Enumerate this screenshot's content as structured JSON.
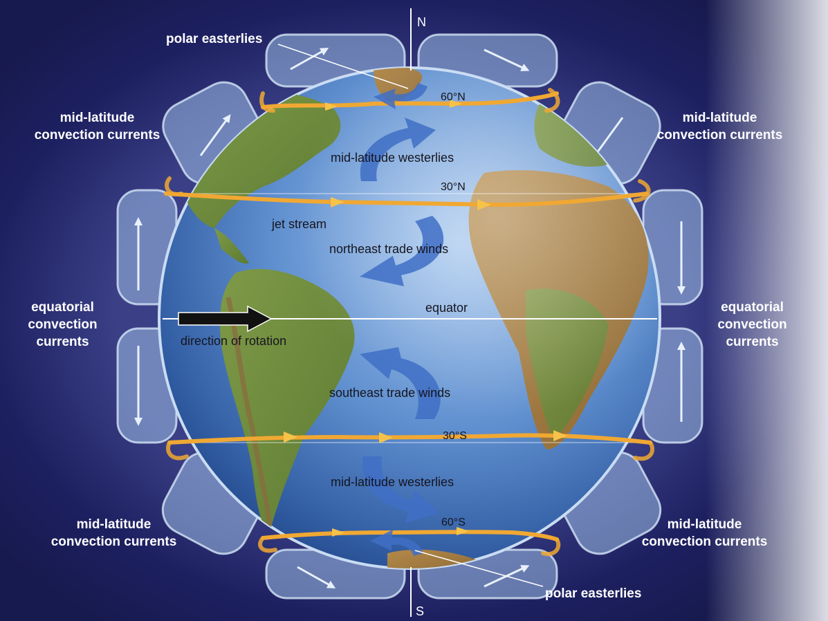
{
  "poles": {
    "north": "N",
    "south": "S"
  },
  "latitudes": {
    "n60": "60°N",
    "n30": "30°N",
    "equator": "equator",
    "s30": "30°S",
    "s60": "60°S"
  },
  "winds": {
    "polar_easterlies_north": "polar easterlies",
    "polar_easterlies_south": "polar easterlies",
    "westerlies_north": "mid-latitude westerlies",
    "westerlies_south": "mid-latitude westerlies",
    "ne_trade": "northeast trade winds",
    "se_trade": "southeast trade winds",
    "jet_stream": "jet stream",
    "rotation": "direction of rotation"
  },
  "convection": {
    "mid_nw": [
      "mid-latitude",
      "convection currents"
    ],
    "mid_ne": [
      "mid-latitude",
      "convection currents"
    ],
    "eq_w": [
      "equatorial",
      "convection",
      "currents"
    ],
    "eq_e": [
      "equatorial",
      "convection",
      "currents"
    ],
    "mid_sw": [
      "mid-latitude",
      "convection currents"
    ],
    "mid_se": [
      "mid-latitude",
      "convection currents"
    ]
  },
  "colors": {
    "background_dark": "#1c1f5a",
    "ocean": "#5a86c4",
    "land": "#6e8a3c",
    "jet_stream": "#f0a833",
    "wind_arrow": "#3f6fc6",
    "cell": "#9fc0e8"
  }
}
